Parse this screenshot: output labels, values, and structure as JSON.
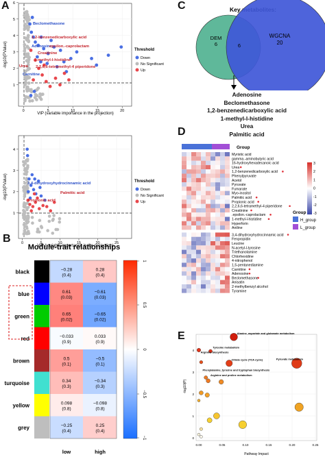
{
  "panels": {
    "A": "A",
    "B": "B",
    "C": "C",
    "D": "D",
    "E": "E"
  },
  "plotA1": {
    "xlabel": "VIP (variable importance in the projection)",
    "ylabel": "-log10(PValue)",
    "xticks": [
      "0",
      "5",
      "10",
      "15",
      "20"
    ],
    "yticks": [
      "1",
      "2",
      "3",
      "4",
      "5",
      "6"
    ],
    "legend_title": "Threshold",
    "legend": [
      "Down",
      "No Significant",
      "Up"
    ],
    "labels": [
      "Beclomethasone",
      "1,2-benzenedicarboxylic acid",
      "Adenosine",
      "epsilon.-caprolactam",
      "Creatinine",
      "1-methyl-l-histidine",
      "Urea",
      "2,2,6,6-tetramethyl-4 piperidone",
      "Carnitine"
    ]
  },
  "plotA2": {
    "xlabel": "VIP (variable importance in the projection)",
    "ylabel": "-log10(PValue)",
    "xticks": [
      "0",
      "5",
      "10",
      "15",
      "20",
      "25"
    ],
    "yticks": [
      "1",
      "2",
      "3",
      "4"
    ],
    "legend_title": "Threshold",
    "legend": [
      "Down",
      "No Significant",
      "Up"
    ],
    "labels": [
      "3,4-dihydroxyhydrocinnamic acid",
      "Palmitic acid",
      "Propionic acid"
    ]
  },
  "venn": {
    "title": "Key metabolites:",
    "left_label": "DEM",
    "left_count": "6",
    "center_count": "6",
    "right_label": "WGCNA",
    "right_count": "20",
    "metabolites": [
      "Adenosine",
      "Beclomethasone",
      "1,2-benzenedicarboxylic acid",
      "1-methyl-l-histidine",
      "Urea",
      "Palmitic acid"
    ]
  },
  "moduleTrait": {
    "title": "Module-trait relationships",
    "colors": {
      "black": "#000000",
      "blue": "#0000ff",
      "green": "#00cc00",
      "red": "#ff0000",
      "brown": "#a52a2a",
      "turquoise": "#40e0d0",
      "yellow": "#ffff00",
      "grey": "#bebebe"
    },
    "rows": [
      {
        "name": "black",
        "low": "−0.28",
        "lowp": "(0.4)",
        "high": "0.28",
        "highp": "(0.4)",
        "v": -0.28
      },
      {
        "name": "blue",
        "low": "0.61",
        "lowp": "(0.03)",
        "high": "−0.61",
        "highp": "(0.03)",
        "v": 0.61
      },
      {
        "name": "green",
        "low": "0.65",
        "lowp": "(0.02)",
        "high": "−0.65",
        "highp": "(0.02)",
        "v": 0.65
      },
      {
        "name": "red",
        "low": "−0.033",
        "lowp": "(0.9)",
        "high": "0.033",
        "highp": "(0.9)",
        "v": -0.033
      },
      {
        "name": "brown",
        "low": "0.5",
        "lowp": "(0.1)",
        "high": "−0.5",
        "highp": "(0.1)",
        "v": 0.5
      },
      {
        "name": "turquoise",
        "low": "0.34",
        "lowp": "(0.3)",
        "high": "−0.34",
        "highp": "(0.3)",
        "v": 0.34
      },
      {
        "name": "yellow",
        "low": "0.098",
        "lowp": "(0.8)",
        "high": "−0.098",
        "highp": "(0.8)",
        "v": 0.098
      },
      {
        "name": "grey",
        "low": "−0.25",
        "lowp": "(0.4)",
        "high": "0.25",
        "highp": "(0.4)",
        "v": -0.25
      }
    ],
    "xlabels": [
      "low",
      "high"
    ],
    "scale": [
      "1",
      "0.5",
      "0",
      "−0.5",
      "−1"
    ]
  },
  "heatmap": {
    "group_title": "Group",
    "group_title2": "Group",
    "groups": [
      "H_group",
      "L_group"
    ],
    "scale": [
      "3",
      "2",
      "1",
      "0",
      "-1",
      "-2",
      "-3"
    ],
    "top_rows": [
      "Myristic acid",
      "gamma.-aminobutyric acid",
      "16-hydroxyhexadecanoic acid",
      "Urea",
      "1,2-benzenedicarboxylic acid",
      "Phenylpyruvate",
      "Acetol",
      "Pyruvate",
      "Fumarate",
      "Myo-inositol",
      "Palmitic acid",
      "Propionic acid",
      "2,2,6,6-tetramethyl-4 piperidone",
      "Creatinine",
      ".epsilon.-caprolactam",
      "1-methyl-l-histidine",
      "Hyperforin",
      "Aniline"
    ],
    "top_star": [
      false,
      false,
      false,
      true,
      true,
      false,
      false,
      false,
      false,
      false,
      true,
      true,
      true,
      true,
      true,
      true,
      false,
      false
    ],
    "bottom_rows": [
      "3,4-dihydroxyhydrocinnamic acid",
      "Fenpropidin",
      "Leucine",
      "N-acetyl-l-tyrosine",
      "Triethanolamine",
      "Chlorhexidine",
      "4-nitrophenol",
      "1,5-pentanediamine",
      "Carnitine",
      "Adenosine",
      "Beclomethasone",
      "Anisatin",
      "2-methylbenzyl alcohol",
      "Tyramine"
    ],
    "bottom_star": [
      true,
      false,
      false,
      false,
      false,
      false,
      false,
      false,
      true,
      true,
      true,
      false,
      false,
      false
    ]
  },
  "pathway": {
    "xlabel": "Pathway Impact",
    "ylabel": "-log10(P)",
    "xticks": [
      "0.00",
      "0.05",
      "0.10",
      "0.15",
      "0.20",
      "0.25"
    ],
    "yticks": [
      "0",
      "1",
      "2",
      "3",
      "4"
    ],
    "labels": [
      "Alanine, aspartate and glutamate metabolism",
      "Tyrosine metabolism",
      "Arginine biosynthesis",
      "Citrate cycle (TCA cycle)",
      "Pyruvate metabolism",
      "Phenylalanine, tyrosine and tryptophan biosynthesis",
      "Arginine and proline metabolism"
    ]
  }
}
